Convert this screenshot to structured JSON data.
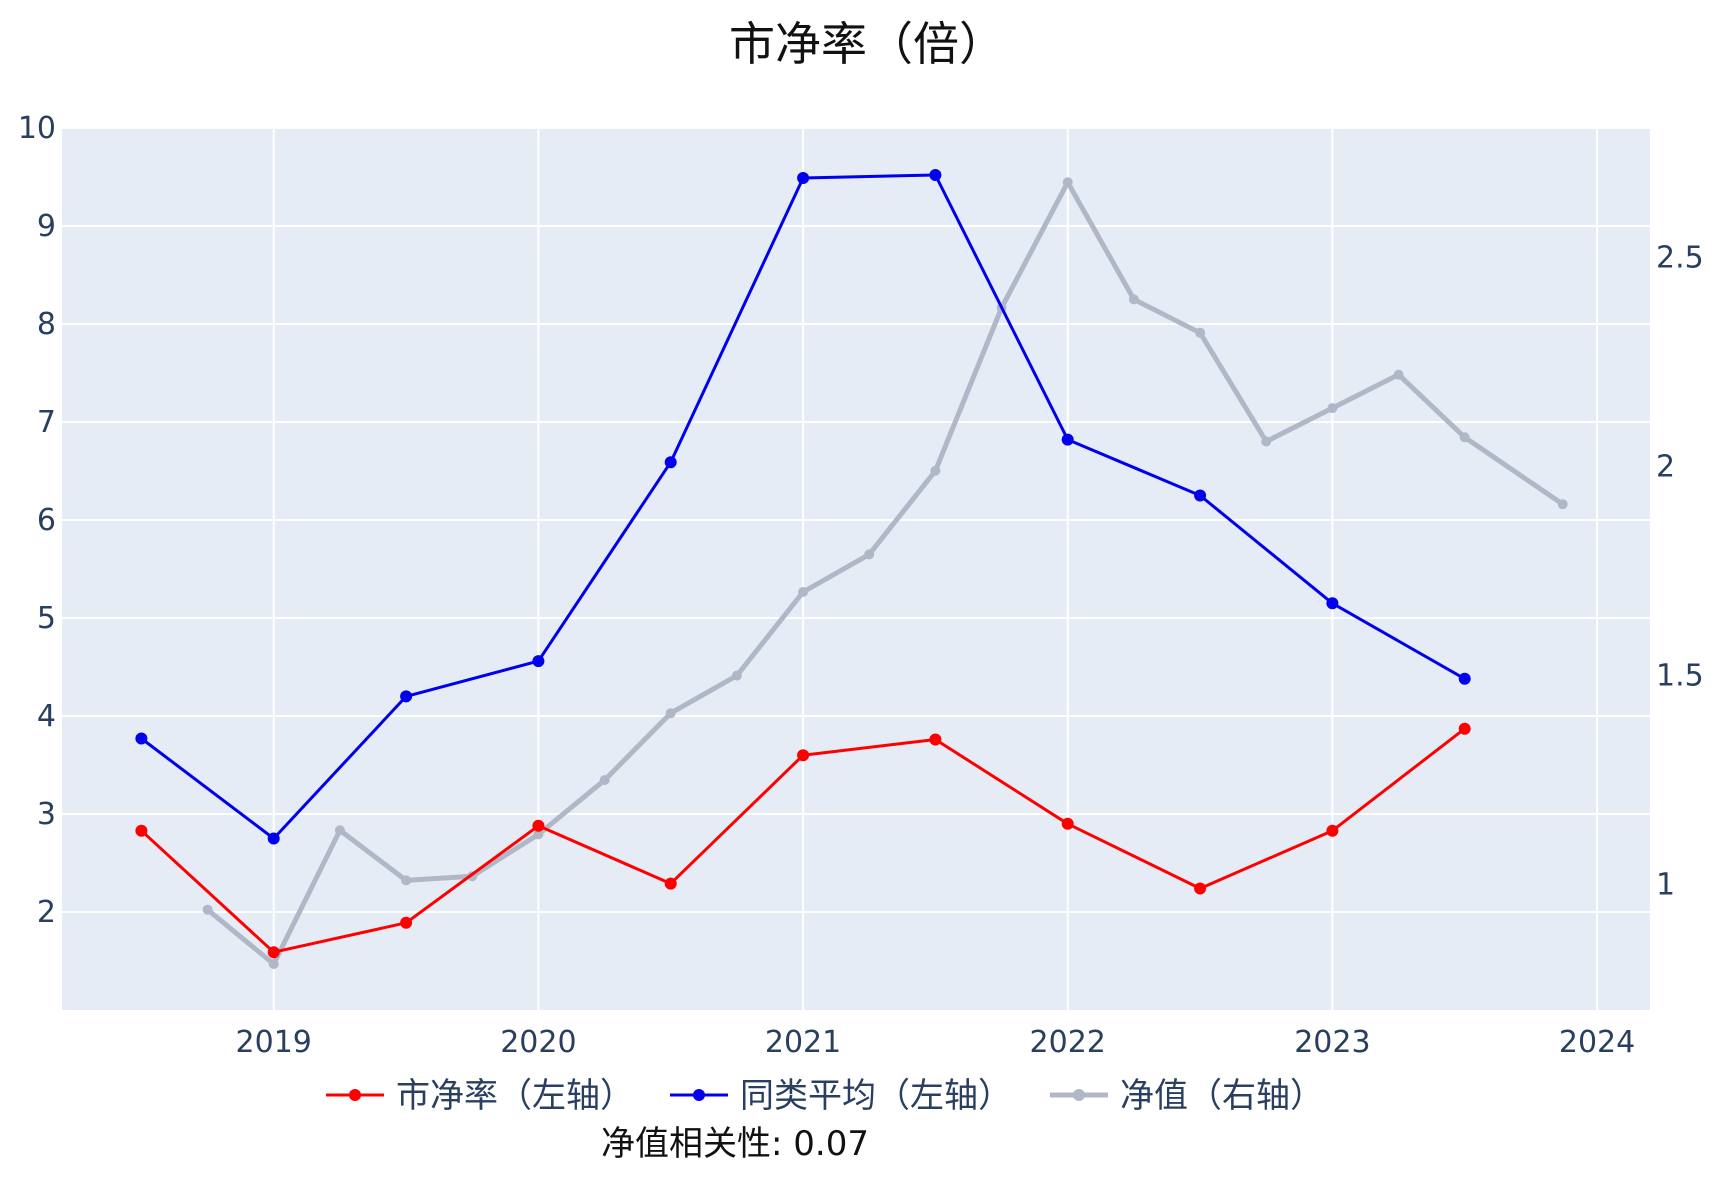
{
  "chart_data": {
    "type": "line",
    "title": "市净率（倍）",
    "annotation": "净值相关性: 0.07",
    "legend_position": "bottom",
    "grid": true,
    "xlim": [
      2018.2,
      2024.2
    ],
    "ylim_left": [
      1.0,
      10.0
    ],
    "ylim_right": [
      0.7,
      2.81
    ],
    "x_ticks": [
      2019,
      2020,
      2021,
      2022,
      2023,
      2024
    ],
    "x_tick_labels": [
      "2019",
      "2020",
      "2021",
      "2022",
      "2023",
      "2024"
    ],
    "y_left_ticks": [
      2,
      3,
      4,
      5,
      6,
      7,
      8,
      9,
      10
    ],
    "y_left_tick_labels": [
      "2",
      "3",
      "4",
      "5",
      "6",
      "7",
      "8",
      "9",
      "10"
    ],
    "y_right_ticks": [
      1,
      1.5,
      2,
      2.5
    ],
    "y_right_tick_labels": [
      "1",
      "1.5",
      "2",
      "2.5"
    ],
    "colors": {
      "plot_bg": "#e5ecf6",
      "grid": "#ffffff",
      "axis_text": "#2a3f5f"
    },
    "series": [
      {
        "name": "市净率（左轴）",
        "axis": "left",
        "color": "#ff0000",
        "x": [
          2018.5,
          2019.0,
          2019.5,
          2020.0,
          2020.5,
          2021.0,
          2021.5,
          2022.0,
          2022.5,
          2023.0,
          2023.5
        ],
        "values": [
          2.83,
          1.59,
          1.89,
          2.88,
          2.29,
          3.6,
          3.76,
          2.9,
          2.24,
          2.83,
          3.87
        ]
      },
      {
        "name": "同类平均（左轴）",
        "axis": "left",
        "color": "#0000ee",
        "x": [
          2018.5,
          2019.0,
          2019.5,
          2020.0,
          2020.5,
          2021.0,
          2021.5,
          2022.0,
          2022.5,
          2023.0,
          2023.5
        ],
        "values": [
          3.77,
          2.75,
          4.2,
          4.56,
          6.59,
          9.49,
          9.52,
          6.82,
          6.25,
          5.15,
          4.38
        ]
      },
      {
        "name": "净值（右轴）",
        "axis": "right",
        "color": "#b0b8c8",
        "x": [
          2018.75,
          2019.0,
          2019.25,
          2019.5,
          2019.75,
          2020.0,
          2020.25,
          2020.5,
          2020.75,
          2021.0,
          2021.25,
          2021.5,
          2021.75,
          2022.0,
          2022.25,
          2022.5,
          2022.75,
          2023.0,
          2023.25,
          2023.5,
          2023.87
        ],
        "values": [
          0.94,
          0.81,
          1.13,
          1.01,
          1.02,
          1.12,
          1.25,
          1.41,
          1.5,
          1.7,
          1.79,
          1.99,
          2.38,
          2.68,
          2.4,
          2.32,
          2.06,
          2.14,
          2.22,
          2.07,
          1.91
        ]
      }
    ]
  }
}
